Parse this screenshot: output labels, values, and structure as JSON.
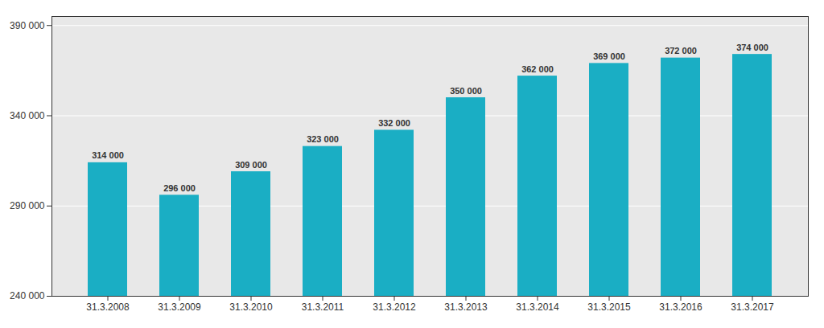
{
  "chart_data": {
    "type": "bar",
    "categories": [
      "31.3.2008",
      "31.3.2009",
      "31.3.2010",
      "31.3.2011",
      "31.3.2012",
      "31.3.2013",
      "31.3.2014",
      "31.3.2015",
      "31.3.2016",
      "31.3.2017"
    ],
    "values": [
      314000,
      296000,
      309000,
      323000,
      332000,
      350000,
      362000,
      369000,
      372000,
      374000
    ],
    "value_labels": [
      "314 000",
      "296 000",
      "309 000",
      "323 000",
      "332 000",
      "350 000",
      "362 000",
      "369 000",
      "372 000",
      "374 000"
    ],
    "data_labels": true,
    "color": "#1aaec4",
    "ylim": [
      240000,
      395000
    ],
    "yticks": [
      {
        "value": 240000,
        "label": "240 000"
      },
      {
        "value": 290000,
        "label": "290 000"
      },
      {
        "value": 340000,
        "label": "340 000"
      },
      {
        "value": 390000,
        "label": "390 000"
      }
    ],
    "grid": true
  }
}
